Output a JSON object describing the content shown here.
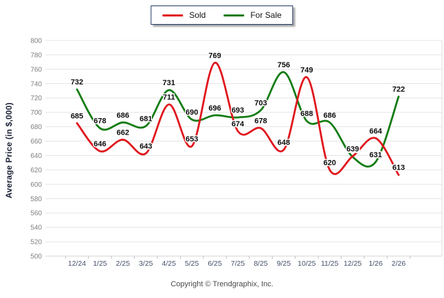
{
  "legend": {
    "items": [
      {
        "label": "Sold",
        "color": "#e0161c"
      },
      {
        "label": "For Sale",
        "color": "#137c13"
      }
    ]
  },
  "y_axis_title": "Average Price (in $,000)",
  "footer": {
    "copyright": "Copyright © Trendgraphix, Inc."
  },
  "chart_data": {
    "type": "line",
    "title": "",
    "xlabel": "",
    "ylabel": "Average Price (in $,000)",
    "categories": [
      "12/24",
      "1/25",
      "2/25",
      "3/25",
      "4/25",
      "5/25",
      "6/25",
      "7/25",
      "8/25",
      "9/25",
      "10/25",
      "11/25",
      "12/25",
      "1/26",
      "2/26"
    ],
    "series": [
      {
        "name": "Sold",
        "color": "#e0161c",
        "values": [
          685,
          646,
          662,
          643,
          711,
          653,
          769,
          674,
          678,
          648,
          749,
          620,
          639,
          664,
          613
        ]
      },
      {
        "name": "For Sale",
        "color": "#137c13",
        "values": [
          732,
          678,
          686,
          681,
          731,
          690,
          696,
          693,
          703,
          756,
          688,
          686,
          638,
          631,
          722
        ]
      }
    ],
    "ylim": [
      500,
      800
    ],
    "ytick_step": 20,
    "grid": "horizontal",
    "smooth": true,
    "data_labels": true,
    "legend_position": "top-center",
    "draw_order_note": "Sold (red) drawn on top of For Sale (green)"
  }
}
